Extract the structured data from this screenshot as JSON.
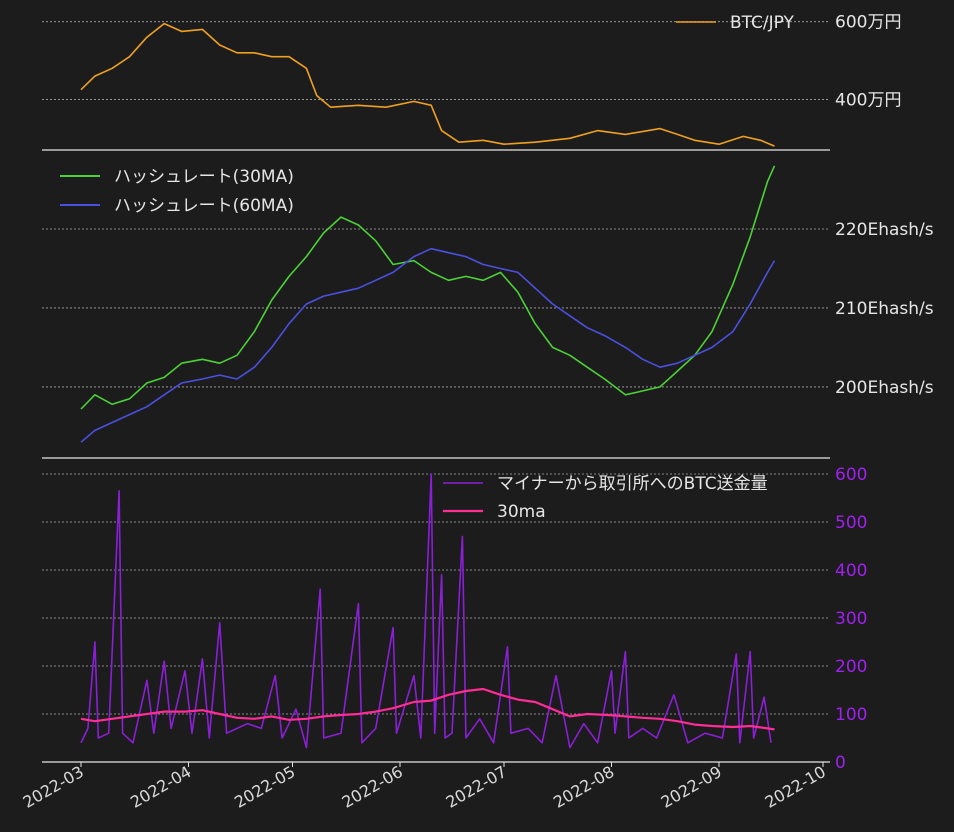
{
  "chart_data": [
    {
      "type": "line",
      "panel": "price",
      "ylim": [
        2700000,
        6300000
      ],
      "ytick_values": [
        4000000,
        6000000
      ],
      "ytick_labels": [
        "400万円",
        "600万円"
      ],
      "grid": true,
      "legend_placement": "top-right",
      "series": [
        {
          "name": "BTC/JPY",
          "color": "#f0a020",
          "points": [
            [
              "2022-03-01",
              4250000
            ],
            [
              "2022-03-05",
              4600000
            ],
            [
              "2022-03-10",
              4800000
            ],
            [
              "2022-03-15",
              5100000
            ],
            [
              "2022-03-20",
              5600000
            ],
            [
              "2022-03-25",
              5950000
            ],
            [
              "2022-03-30",
              5750000
            ],
            [
              "2022-04-05",
              5800000
            ],
            [
              "2022-04-10",
              5400000
            ],
            [
              "2022-04-15",
              5200000
            ],
            [
              "2022-04-20",
              5200000
            ],
            [
              "2022-04-25",
              5100000
            ],
            [
              "2022-04-30",
              5100000
            ],
            [
              "2022-05-05",
              4800000
            ],
            [
              "2022-05-08",
              4100000
            ],
            [
              "2022-05-12",
              3800000
            ],
            [
              "2022-05-20",
              3850000
            ],
            [
              "2022-05-28",
              3800000
            ],
            [
              "2022-06-05",
              3950000
            ],
            [
              "2022-06-10",
              3850000
            ],
            [
              "2022-06-13",
              3200000
            ],
            [
              "2022-06-18",
              2900000
            ],
            [
              "2022-06-25",
              2950000
            ],
            [
              "2022-07-01",
              2850000
            ],
            [
              "2022-07-10",
              2900000
            ],
            [
              "2022-07-20",
              3000000
            ],
            [
              "2022-07-28",
              3200000
            ],
            [
              "2022-08-05",
              3100000
            ],
            [
              "2022-08-15",
              3250000
            ],
            [
              "2022-08-20",
              3100000
            ],
            [
              "2022-08-25",
              2950000
            ],
            [
              "2022-09-01",
              2850000
            ],
            [
              "2022-09-08",
              3050000
            ],
            [
              "2022-09-13",
              2950000
            ],
            [
              "2022-09-17",
              2800000
            ]
          ]
        }
      ]
    },
    {
      "type": "line",
      "panel": "hashrate",
      "ylim": [
        191,
        230
      ],
      "yticks": [
        200,
        210,
        220
      ],
      "ytick_labels": [
        "200Ehash/s",
        "210Ehash/s",
        "220Ehash/s"
      ],
      "grid": true,
      "legend_placement": "top-left",
      "series": [
        {
          "name": "ハッシュレート(30MA)",
          "color": "#4cd137",
          "points": [
            [
              "2022-03-01",
              197.2
            ],
            [
              "2022-03-05",
              199.0
            ],
            [
              "2022-03-10",
              197.8
            ],
            [
              "2022-03-15",
              198.5
            ],
            [
              "2022-03-20",
              200.5
            ],
            [
              "2022-03-25",
              201.2
            ],
            [
              "2022-03-30",
              203.0
            ],
            [
              "2022-04-05",
              203.5
            ],
            [
              "2022-04-10",
              203.0
            ],
            [
              "2022-04-15",
              204.0
            ],
            [
              "2022-04-20",
              207.0
            ],
            [
              "2022-04-25",
              211.0
            ],
            [
              "2022-04-30",
              214.0
            ],
            [
              "2022-05-05",
              216.5
            ],
            [
              "2022-05-10",
              219.5
            ],
            [
              "2022-05-15",
              221.5
            ],
            [
              "2022-05-20",
              220.5
            ],
            [
              "2022-05-25",
              218.5
            ],
            [
              "2022-05-30",
              215.5
            ],
            [
              "2022-06-05",
              216.0
            ],
            [
              "2022-06-10",
              214.5
            ],
            [
              "2022-06-15",
              213.5
            ],
            [
              "2022-06-20",
              214.0
            ],
            [
              "2022-06-25",
              213.5
            ],
            [
              "2022-06-30",
              214.5
            ],
            [
              "2022-07-05",
              212.0
            ],
            [
              "2022-07-10",
              208.0
            ],
            [
              "2022-07-15",
              205.0
            ],
            [
              "2022-07-20",
              204.0
            ],
            [
              "2022-07-25",
              202.5
            ],
            [
              "2022-07-30",
              201.0
            ],
            [
              "2022-08-05",
              199.0
            ],
            [
              "2022-08-10",
              199.5
            ],
            [
              "2022-08-15",
              200.0
            ],
            [
              "2022-08-20",
              202.0
            ],
            [
              "2022-08-25",
              204.0
            ],
            [
              "2022-08-30",
              207.0
            ],
            [
              "2022-09-05",
              213.0
            ],
            [
              "2022-09-10",
              219.0
            ],
            [
              "2022-09-15",
              226.0
            ],
            [
              "2022-09-17",
              228.0
            ]
          ]
        },
        {
          "name": "ハッシュレート(60MA)",
          "color": "#4a50e0",
          "points": [
            [
              "2022-03-01",
              193.0
            ],
            [
              "2022-03-05",
              194.5
            ],
            [
              "2022-03-10",
              195.5
            ],
            [
              "2022-03-15",
              196.5
            ],
            [
              "2022-03-20",
              197.5
            ],
            [
              "2022-03-25",
              199.0
            ],
            [
              "2022-03-30",
              200.5
            ],
            [
              "2022-04-05",
              201.0
            ],
            [
              "2022-04-10",
              201.5
            ],
            [
              "2022-04-15",
              201.0
            ],
            [
              "2022-04-20",
              202.5
            ],
            [
              "2022-04-25",
              205.0
            ],
            [
              "2022-04-30",
              208.0
            ],
            [
              "2022-05-05",
              210.5
            ],
            [
              "2022-05-10",
              211.5
            ],
            [
              "2022-05-15",
              212.0
            ],
            [
              "2022-05-20",
              212.5
            ],
            [
              "2022-05-25",
              213.5
            ],
            [
              "2022-05-30",
              214.5
            ],
            [
              "2022-06-05",
              216.5
            ],
            [
              "2022-06-10",
              217.5
            ],
            [
              "2022-06-15",
              217.0
            ],
            [
              "2022-06-20",
              216.5
            ],
            [
              "2022-06-25",
              215.5
            ],
            [
              "2022-06-30",
              215.0
            ],
            [
              "2022-07-05",
              214.5
            ],
            [
              "2022-07-10",
              212.5
            ],
            [
              "2022-07-15",
              210.5
            ],
            [
              "2022-07-20",
              209.0
            ],
            [
              "2022-07-25",
              207.5
            ],
            [
              "2022-07-30",
              206.5
            ],
            [
              "2022-08-05",
              205.0
            ],
            [
              "2022-08-10",
              203.5
            ],
            [
              "2022-08-15",
              202.5
            ],
            [
              "2022-08-20",
              203.0
            ],
            [
              "2022-08-25",
              204.0
            ],
            [
              "2022-08-30",
              205.0
            ],
            [
              "2022-09-05",
              207.0
            ],
            [
              "2022-09-10",
              210.5
            ],
            [
              "2022-09-15",
              214.5
            ],
            [
              "2022-09-17",
              216.0
            ]
          ]
        }
      ]
    },
    {
      "type": "line",
      "panel": "transfers",
      "ylim": [
        0,
        600
      ],
      "yticks": [
        0,
        100,
        200,
        300,
        400,
        500,
        600
      ],
      "ytick_labels": [
        "0",
        "100",
        "200",
        "300",
        "400",
        "500",
        "600"
      ],
      "grid": true,
      "legend_placement": "top-right",
      "x_tick_labels": [
        "2022-03",
        "2022-04",
        "2022-05",
        "2022-06",
        "2022-07",
        "2022-08",
        "2022-09",
        "2022-10"
      ],
      "series": [
        {
          "name": "マイナーから取引所へのBTC送金量",
          "color": "#8a1fd6",
          "points": [
            [
              "2022-03-01",
              40
            ],
            [
              "2022-03-03",
              70
            ],
            [
              "2022-03-05",
              250
            ],
            [
              "2022-03-06",
              50
            ],
            [
              "2022-03-09",
              60
            ],
            [
              "2022-03-12",
              565
            ],
            [
              "2022-03-13",
              60
            ],
            [
              "2022-03-16",
              40
            ],
            [
              "2022-03-20",
              170
            ],
            [
              "2022-03-22",
              60
            ],
            [
              "2022-03-25",
              210
            ],
            [
              "2022-03-27",
              70
            ],
            [
              "2022-03-31",
              190
            ],
            [
              "2022-04-02",
              60
            ],
            [
              "2022-04-05",
              215
            ],
            [
              "2022-04-07",
              50
            ],
            [
              "2022-04-10",
              290
            ],
            [
              "2022-04-12",
              60
            ],
            [
              "2022-04-18",
              80
            ],
            [
              "2022-04-22",
              70
            ],
            [
              "2022-04-26",
              180
            ],
            [
              "2022-04-28",
              50
            ],
            [
              "2022-05-02",
              110
            ],
            [
              "2022-05-05",
              30
            ],
            [
              "2022-05-09",
              360
            ],
            [
              "2022-05-10",
              50
            ],
            [
              "2022-05-15",
              60
            ],
            [
              "2022-05-20",
              330
            ],
            [
              "2022-05-21",
              40
            ],
            [
              "2022-05-25",
              70
            ],
            [
              "2022-05-30",
              280
            ],
            [
              "2022-05-31",
              60
            ],
            [
              "2022-06-05",
              180
            ],
            [
              "2022-06-07",
              50
            ],
            [
              "2022-06-10",
              600
            ],
            [
              "2022-06-11",
              60
            ],
            [
              "2022-06-13",
              390
            ],
            [
              "2022-06-14",
              50
            ],
            [
              "2022-06-16",
              60
            ],
            [
              "2022-06-19",
              470
            ],
            [
              "2022-06-20",
              50
            ],
            [
              "2022-06-24",
              90
            ],
            [
              "2022-06-28",
              40
            ],
            [
              "2022-07-02",
              240
            ],
            [
              "2022-07-03",
              60
            ],
            [
              "2022-07-08",
              70
            ],
            [
              "2022-07-12",
              40
            ],
            [
              "2022-07-16",
              180
            ],
            [
              "2022-07-20",
              30
            ],
            [
              "2022-07-24",
              80
            ],
            [
              "2022-07-28",
              40
            ],
            [
              "2022-08-01",
              190
            ],
            [
              "2022-08-02",
              60
            ],
            [
              "2022-08-05",
              230
            ],
            [
              "2022-08-06",
              50
            ],
            [
              "2022-08-10",
              70
            ],
            [
              "2022-08-14",
              50
            ],
            [
              "2022-08-19",
              140
            ],
            [
              "2022-08-23",
              40
            ],
            [
              "2022-08-28",
              60
            ],
            [
              "2022-09-02",
              50
            ],
            [
              "2022-09-06",
              225
            ],
            [
              "2022-09-07",
              40
            ],
            [
              "2022-09-10",
              230
            ],
            [
              "2022-09-11",
              50
            ],
            [
              "2022-09-14",
              135
            ],
            [
              "2022-09-16",
              40
            ]
          ]
        },
        {
          "name": "30ma",
          "color": "#ff2d95",
          "points": [
            [
              "2022-03-01",
              90
            ],
            [
              "2022-03-05",
              85
            ],
            [
              "2022-03-10",
              90
            ],
            [
              "2022-03-15",
              95
            ],
            [
              "2022-03-20",
              100
            ],
            [
              "2022-03-25",
              105
            ],
            [
              "2022-03-31",
              105
            ],
            [
              "2022-04-05",
              108
            ],
            [
              "2022-04-10",
              100
            ],
            [
              "2022-04-15",
              92
            ],
            [
              "2022-04-20",
              90
            ],
            [
              "2022-04-25",
              95
            ],
            [
              "2022-04-30",
              88
            ],
            [
              "2022-05-05",
              90
            ],
            [
              "2022-05-10",
              95
            ],
            [
              "2022-05-15",
              98
            ],
            [
              "2022-05-20",
              100
            ],
            [
              "2022-05-25",
              105
            ],
            [
              "2022-05-30",
              112
            ],
            [
              "2022-06-05",
              125
            ],
            [
              "2022-06-10",
              128
            ],
            [
              "2022-06-15",
              140
            ],
            [
              "2022-06-20",
              148
            ],
            [
              "2022-06-25",
              152
            ],
            [
              "2022-06-30",
              140
            ],
            [
              "2022-07-05",
              130
            ],
            [
              "2022-07-10",
              125
            ],
            [
              "2022-07-15",
              110
            ],
            [
              "2022-07-20",
              95
            ],
            [
              "2022-07-25",
              100
            ],
            [
              "2022-07-31",
              98
            ],
            [
              "2022-08-05",
              95
            ],
            [
              "2022-08-10",
              92
            ],
            [
              "2022-08-15",
              90
            ],
            [
              "2022-08-20",
              85
            ],
            [
              "2022-08-25",
              78
            ],
            [
              "2022-08-30",
              75
            ],
            [
              "2022-09-05",
              73
            ],
            [
              "2022-09-10",
              75
            ],
            [
              "2022-09-15",
              70
            ],
            [
              "2022-09-17",
              68
            ]
          ]
        }
      ]
    }
  ]
}
